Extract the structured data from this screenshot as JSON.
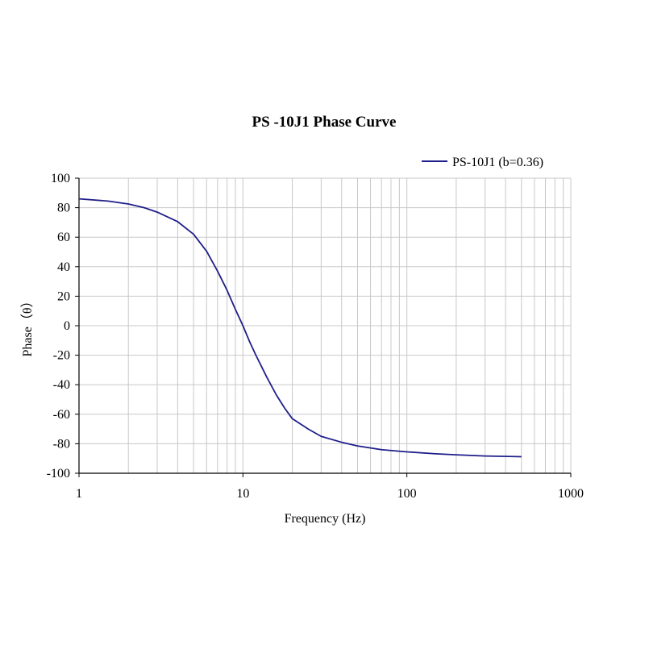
{
  "chart_data": {
    "type": "line",
    "title": "PS -10J1 Phase Curve",
    "xlabel": "Frequency (Hz)",
    "ylabel": "Phase（θ）",
    "xscale": "log",
    "xlim": [
      1,
      1000
    ],
    "ylim": [
      -100,
      100
    ],
    "x_ticks": [
      "1",
      "10",
      "100",
      "1000"
    ],
    "y_ticks": [
      "100",
      "80",
      "60",
      "40",
      "20",
      "0",
      "-20",
      "-40",
      "-60",
      "-80",
      "-100"
    ],
    "grid": true,
    "legend_position": "top-right",
    "series": [
      {
        "name": "PS-10J1 (b=0.36)",
        "color": "#1f1f8a",
        "x": [
          1,
          1.5,
          2,
          2.5,
          3,
          4,
          5,
          6,
          7,
          8,
          9,
          10,
          11,
          12,
          14,
          16,
          18,
          20,
          25,
          30,
          40,
          50,
          70,
          100,
          150,
          200,
          300,
          500
        ],
        "y": [
          86,
          84.5,
          82.5,
          80,
          77,
          70.5,
          62,
          50.5,
          37,
          24,
          11,
          0,
          -11,
          -20,
          -35,
          -47,
          -56,
          -63,
          -70,
          -75,
          -79,
          -81.5,
          -84,
          -85.5,
          -86.8,
          -87.5,
          -88.3,
          -88.8
        ]
      }
    ]
  }
}
